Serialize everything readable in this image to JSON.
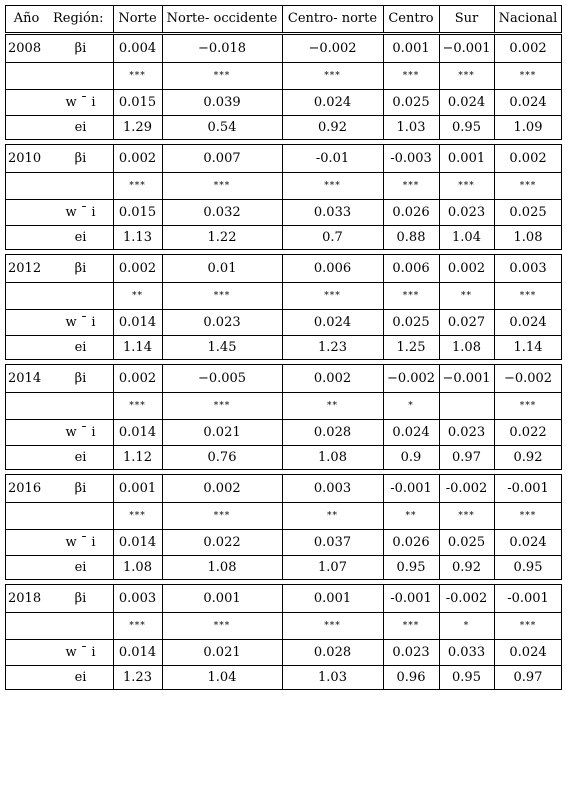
{
  "header": {
    "year": "Año",
    "region": "Región:",
    "cols": [
      "Norte",
      "Norte- occidente",
      "Centro- norte",
      "Centro",
      "Sur",
      "Nacional"
    ]
  },
  "blocks": [
    {
      "year": "2008",
      "rows": [
        {
          "label": "βi",
          "values": [
            "0.004",
            "−0.018",
            "−0.002",
            "0.001",
            "−0.001",
            "0.002"
          ]
        },
        {
          "label": "",
          "values": [
            "***",
            "***",
            "***",
            "***",
            "***",
            "***"
          ]
        },
        {
          "label": "w ¯ i",
          "values": [
            "0.015",
            "0.039",
            "0.024",
            "0.025",
            "0.024",
            "0.024"
          ]
        },
        {
          "label": "ei",
          "values": [
            "1.29",
            "0.54",
            "0.92",
            "1.03",
            "0.95",
            "1.09"
          ]
        }
      ]
    },
    {
      "year": "2010",
      "rows": [
        {
          "label": "βi",
          "values": [
            "0.002",
            "0.007",
            "-0.01",
            "-0.003",
            "0.001",
            "0.002"
          ]
        },
        {
          "label": "",
          "values": [
            "***",
            "***",
            "***",
            "***",
            "***",
            "***"
          ]
        },
        {
          "label": "w ¯ i",
          "values": [
            "0.015",
            "0.032",
            "0.033",
            "0.026",
            "0.023",
            "0.025"
          ]
        },
        {
          "label": "ei",
          "values": [
            "1.13",
            "1.22",
            "0.7",
            "0.88",
            "1.04",
            "1.08"
          ]
        }
      ]
    },
    {
      "year": "2012",
      "rows": [
        {
          "label": "βi",
          "values": [
            "0.002",
            "0.01",
            "0.006",
            "0.006",
            "0.002",
            "0.003"
          ]
        },
        {
          "label": "",
          "values": [
            "**",
            "***",
            "***",
            "***",
            "**",
            "***"
          ]
        },
        {
          "label": "w ¯ i",
          "values": [
            "0.014",
            "0.023",
            "0.024",
            "0.025",
            "0.027",
            "0.024"
          ]
        },
        {
          "label": "ei",
          "values": [
            "1.14",
            "1.45",
            "1.23",
            "1.25",
            "1.08",
            "1.14"
          ]
        }
      ]
    },
    {
      "year": "2014",
      "rows": [
        {
          "label": "βi",
          "values": [
            "0.002",
            "−0.005",
            "0.002",
            "−0.002",
            "−0.001",
            "−0.002"
          ]
        },
        {
          "label": "",
          "values": [
            "***",
            "***",
            "**",
            "*",
            "",
            "***"
          ]
        },
        {
          "label": "w ¯ i",
          "values": [
            "0.014",
            "0.021",
            "0.028",
            "0.024",
            "0.023",
            "0.022"
          ]
        },
        {
          "label": "ei",
          "values": [
            "1.12",
            "0.76",
            "1.08",
            "0.9",
            "0.97",
            "0.92"
          ]
        }
      ]
    },
    {
      "year": "2016",
      "rows": [
        {
          "label": "βi",
          "values": [
            "0.001",
            "0.002",
            "0.003",
            "-0.001",
            "-0.002",
            "-0.001"
          ]
        },
        {
          "label": "",
          "values": [
            "***",
            "***",
            "**",
            "**",
            "***",
            "***"
          ]
        },
        {
          "label": "w ¯ i",
          "values": [
            "0.014",
            "0.022",
            "0.037",
            "0.026",
            "0.025",
            "0.024"
          ]
        },
        {
          "label": "ei",
          "values": [
            "1.08",
            "1.08",
            "1.07",
            "0.95",
            "0.92",
            "0.95"
          ]
        }
      ]
    },
    {
      "year": "2018",
      "rows": [
        {
          "label": "βi",
          "values": [
            "0.003",
            "0.001",
            "0.001",
            "-0.001",
            "-0.002",
            "-0.001"
          ]
        },
        {
          "label": "",
          "values": [
            "***",
            "***",
            "***",
            "***",
            "*",
            "***"
          ]
        },
        {
          "label": "w ¯ i",
          "values": [
            "0.014",
            "0.021",
            "0.028",
            "0.023",
            "0.033",
            "0.024"
          ]
        },
        {
          "label": "ei",
          "values": [
            "1.23",
            "1.04",
            "1.03",
            "0.96",
            "0.95",
            "0.97"
          ]
        }
      ]
    }
  ]
}
